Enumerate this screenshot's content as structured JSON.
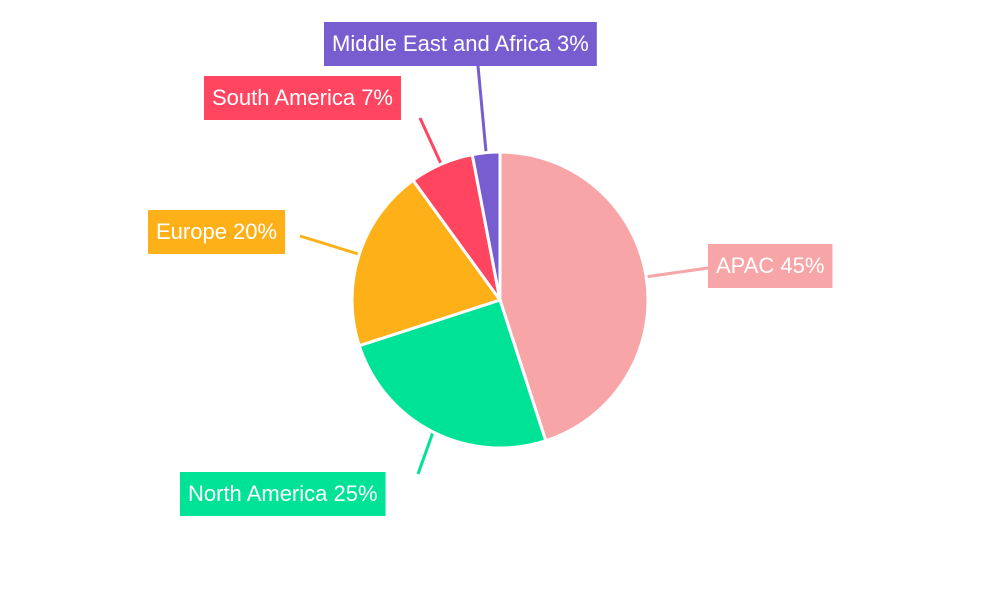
{
  "chart_data": {
    "type": "pie",
    "categories": [
      "APAC 45%",
      "North America 25%",
      "Europe 20%",
      "South America 7%",
      "Middle East and Africa 3%"
    ],
    "values": [
      45,
      25,
      20,
      7,
      3
    ],
    "colors": [
      "#f8a5a8",
      "#00e396",
      "#feb019",
      "#ff4560",
      "#775dd0"
    ]
  }
}
